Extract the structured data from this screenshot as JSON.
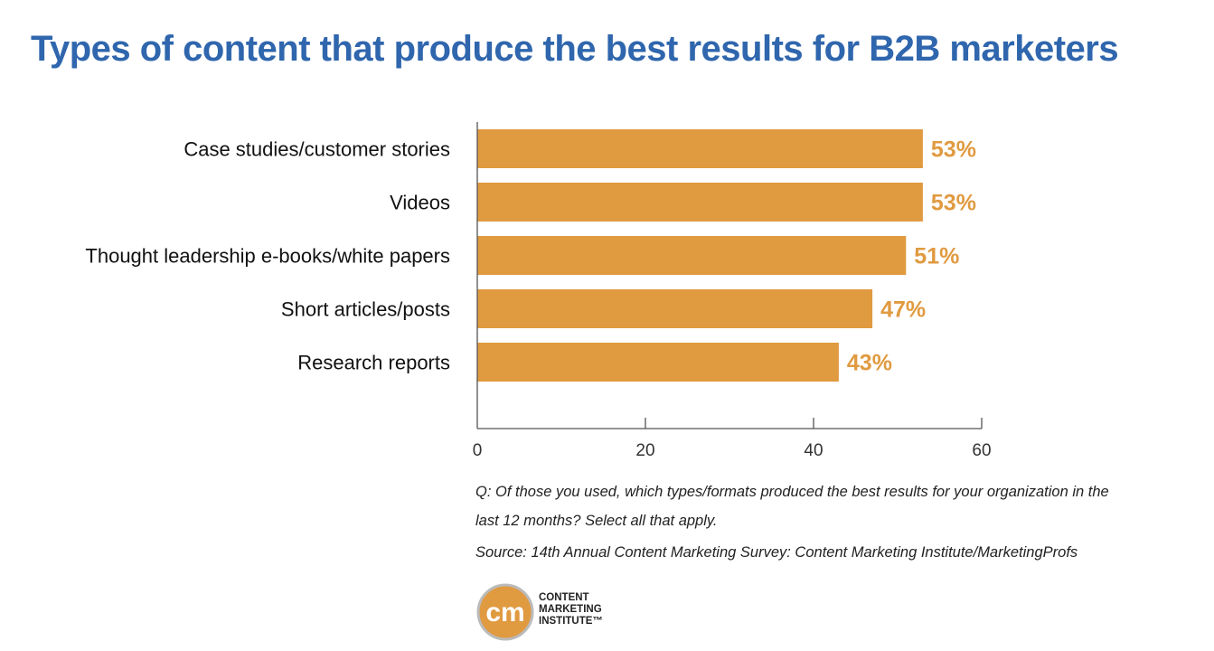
{
  "title": "Types of content that produce the best results for B2B marketers",
  "chart_data": {
    "type": "bar",
    "orientation": "horizontal",
    "title": "Types of content that produce the best results for B2B marketers",
    "categories": [
      "Case studies/customer stories",
      "Videos",
      "Thought leadership e-books/white papers",
      "Short articles/posts",
      "Research reports"
    ],
    "values": [
      53,
      53,
      51,
      47,
      43
    ],
    "data_labels": [
      "53%",
      "53%",
      "51%",
      "47%",
      "43%"
    ],
    "xlabel": "",
    "ylabel": "",
    "xlim": [
      0,
      60
    ],
    "xticks": [
      0,
      20,
      40,
      60
    ],
    "xtick_labels": [
      "0",
      "20",
      "40",
      "60"
    ],
    "grid": false,
    "bar_color": "#e09a40",
    "label_color": "#e09a40"
  },
  "notes": {
    "question_line1": "Q: Of those you used, which types/formats produced the best results for your organization in the",
    "question_line2": "last 12 months? Select all that apply.",
    "source": "Source: 14th Annual Content Marketing Survey: Content Marketing Institute/MarketingProfs"
  },
  "logo": {
    "mark": "cm",
    "line1": "CONTENT",
    "line2": "MARKETING",
    "line3": "INSTITUTE™"
  }
}
